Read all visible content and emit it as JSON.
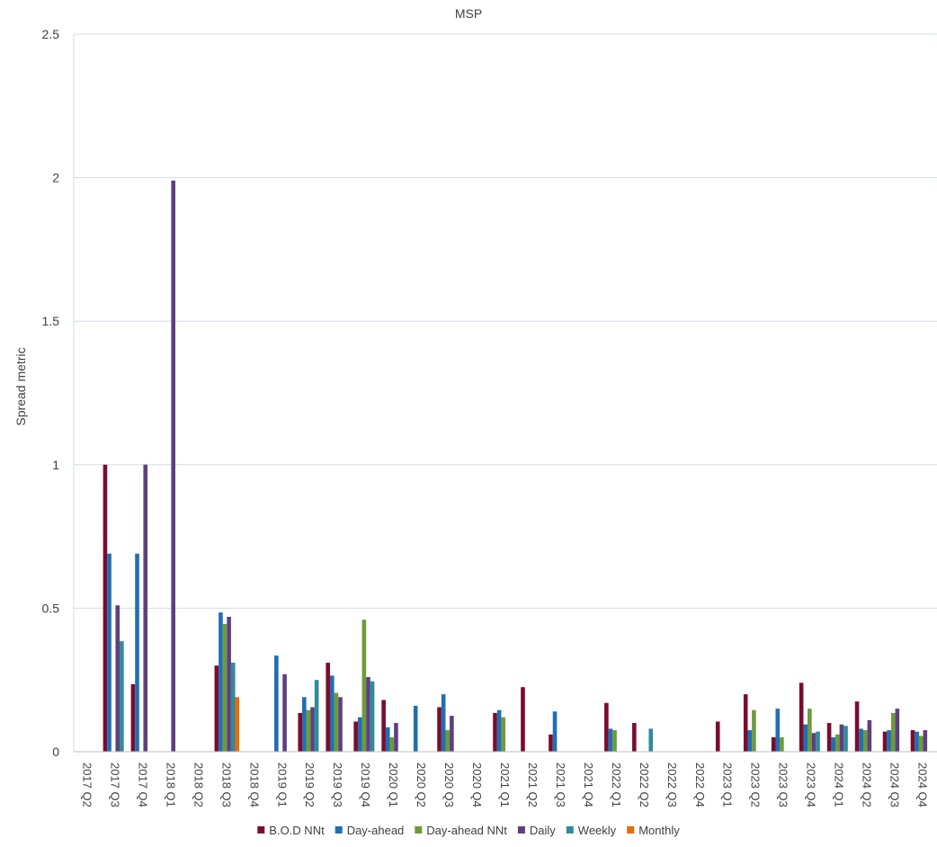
{
  "chart_data": {
    "type": "bar",
    "title": "MSP",
    "ylabel": "Spread metric",
    "xlabel": "",
    "ylim": [
      0,
      2.5
    ],
    "yticks": [
      "0",
      "0.5",
      "1",
      "1.5",
      "2",
      "2.5"
    ],
    "grid": true,
    "legend_position": "bottom",
    "categories": [
      "2017 Q2",
      "2017 Q3",
      "2017 Q4",
      "2018 Q1",
      "2018 Q2",
      "2018 Q3",
      "2018 Q4",
      "2019 Q1",
      "2019 Q2",
      "2019 Q3",
      "2019 Q4",
      "2020 Q1",
      "2020 Q2",
      "2020 Q3",
      "2020 Q4",
      "2021 Q1",
      "2021 Q2",
      "2021 Q3",
      "2021 Q4",
      "2022 Q1",
      "2022 Q2",
      "2022 Q3",
      "2022 Q4",
      "2023 Q1",
      "2023 Q2",
      "2023 Q3",
      "2023 Q4",
      "2024 Q1",
      "2024 Q2",
      "2024 Q3",
      "2024 Q4"
    ],
    "series": [
      {
        "name": "B.O.D NNt",
        "color": "#7B0C2F",
        "values": [
          null,
          1.0,
          0.235,
          null,
          null,
          0.3,
          null,
          null,
          0.135,
          0.31,
          0.105,
          0.18,
          null,
          0.155,
          null,
          0.135,
          0.225,
          0.06,
          null,
          0.17,
          0.1,
          null,
          null,
          0.105,
          0.2,
          0.05,
          0.24,
          0.1,
          0.175,
          0.07,
          0.075
        ]
      },
      {
        "name": "Day-ahead",
        "color": "#1F6FB2",
        "values": [
          null,
          0.69,
          0.69,
          null,
          null,
          0.485,
          null,
          0.335,
          0.19,
          0.265,
          0.12,
          0.085,
          0.16,
          0.2,
          null,
          0.145,
          null,
          0.14,
          null,
          0.08,
          null,
          null,
          null,
          null,
          0.075,
          0.15,
          0.095,
          0.05,
          0.08,
          0.075,
          0.07
        ]
      },
      {
        "name": "Day-ahead NNt",
        "color": "#6E9A3A",
        "values": [
          null,
          null,
          null,
          null,
          null,
          0.445,
          null,
          null,
          0.145,
          0.205,
          0.46,
          0.05,
          null,
          0.075,
          null,
          0.12,
          null,
          null,
          null,
          0.075,
          null,
          null,
          null,
          null,
          0.145,
          0.05,
          0.15,
          0.06,
          0.075,
          0.135,
          0.055
        ]
      },
      {
        "name": "Daily",
        "color": "#5E4080",
        "values": [
          null,
          0.51,
          1.0,
          1.99,
          null,
          0.47,
          null,
          0.27,
          0.155,
          0.19,
          0.26,
          0.1,
          null,
          0.125,
          null,
          null,
          null,
          null,
          null,
          null,
          null,
          null,
          null,
          null,
          null,
          null,
          0.065,
          0.095,
          0.11,
          0.15,
          0.075
        ]
      },
      {
        "name": "Weekly",
        "color": "#2E8B9A",
        "values": [
          null,
          0.385,
          null,
          null,
          null,
          0.31,
          null,
          null,
          0.25,
          null,
          0.245,
          null,
          null,
          null,
          null,
          null,
          null,
          null,
          null,
          null,
          0.08,
          null,
          null,
          null,
          null,
          null,
          0.07,
          0.09,
          null,
          null,
          null
        ]
      },
      {
        "name": "Monthly",
        "color": "#E46C0A",
        "values": [
          null,
          null,
          null,
          null,
          null,
          0.19,
          null,
          null,
          null,
          null,
          null,
          null,
          null,
          null,
          null,
          null,
          null,
          null,
          null,
          null,
          null,
          null,
          null,
          null,
          null,
          null,
          null,
          null,
          null,
          null,
          null
        ]
      }
    ]
  }
}
